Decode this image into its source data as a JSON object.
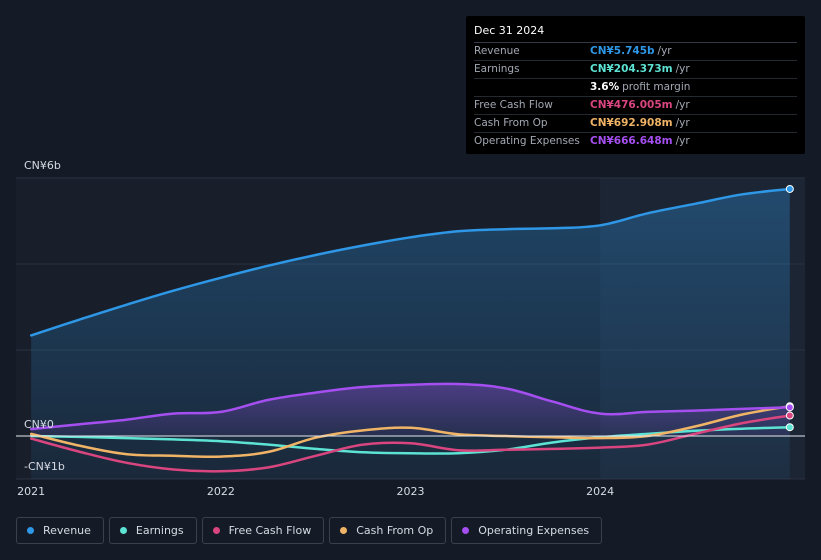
{
  "tooltip": {
    "date": "Dec 31 2024",
    "rows": [
      {
        "label": "Revenue",
        "value": "CN¥5.745b",
        "unit": "/yr",
        "color": "#2e97e6"
      },
      {
        "label": "Earnings",
        "value": "CN¥204.373m",
        "unit": "/yr",
        "color": "#5de3d3"
      },
      {
        "label": "",
        "value": "3.6%",
        "unit": "profit margin",
        "color": "#ffffff"
      },
      {
        "label": "Free Cash Flow",
        "value": "CN¥476.005m",
        "unit": "/yr",
        "color": "#d9457f"
      },
      {
        "label": "Cash From Op",
        "value": "CN¥692.908m",
        "unit": "/yr",
        "color": "#f0b467"
      },
      {
        "label": "Operating Expenses",
        "value": "CN¥666.648m",
        "unit": "/yr",
        "color": "#a54ff0"
      }
    ]
  },
  "legend": [
    {
      "label": "Revenue",
      "color": "#2e97e6"
    },
    {
      "label": "Earnings",
      "color": "#5de3d3"
    },
    {
      "label": "Free Cash Flow",
      "color": "#d9457f"
    },
    {
      "label": "Cash From Op",
      "color": "#f0b467"
    },
    {
      "label": "Operating Expenses",
      "color": "#a54ff0"
    }
  ],
  "chart_data": {
    "type": "area",
    "title": "",
    "x_unit": "year",
    "xlim": [
      2020.92,
      2025.08
    ],
    "ylim": [
      -1,
      6
    ],
    "y_tick_labels": [
      {
        "value": 6,
        "label": "CN¥6b"
      },
      {
        "value": 0,
        "label": "CN¥0"
      },
      {
        "value": -1,
        "label": "-CN¥1b"
      }
    ],
    "x_tick_labels": [
      {
        "value": 2021,
        "label": "2021"
      },
      {
        "value": 2022,
        "label": "2022"
      },
      {
        "value": 2023,
        "label": "2023"
      },
      {
        "value": 2024,
        "label": "2024"
      }
    ],
    "gridlines": [
      6,
      4,
      2,
      0,
      -1
    ],
    "highlight_from": 2024,
    "series": [
      {
        "name": "Revenue",
        "color": "#2e97e6",
        "fill": true,
        "points": [
          [
            2021,
            2.34
          ],
          [
            2021.25,
            2.7
          ],
          [
            2021.5,
            3.05
          ],
          [
            2021.75,
            3.38
          ],
          [
            2022,
            3.68
          ],
          [
            2022.25,
            3.96
          ],
          [
            2022.5,
            4.21
          ],
          [
            2022.75,
            4.43
          ],
          [
            2023,
            4.62
          ],
          [
            2023.25,
            4.76
          ],
          [
            2023.5,
            4.81
          ],
          [
            2023.75,
            4.83
          ],
          [
            2024,
            4.9
          ],
          [
            2024.25,
            5.18
          ],
          [
            2024.5,
            5.4
          ],
          [
            2024.75,
            5.62
          ],
          [
            2025,
            5.745
          ]
        ]
      },
      {
        "name": "Earnings",
        "color": "#5de3d3",
        "fill": false,
        "points": [
          [
            2021,
            0
          ],
          [
            2021.25,
            -0.02
          ],
          [
            2021.5,
            -0.05
          ],
          [
            2021.75,
            -0.08
          ],
          [
            2022,
            -0.12
          ],
          [
            2022.25,
            -0.2
          ],
          [
            2022.5,
            -0.3
          ],
          [
            2022.75,
            -0.38
          ],
          [
            2023,
            -0.4
          ],
          [
            2023.25,
            -0.4
          ],
          [
            2023.5,
            -0.32
          ],
          [
            2023.75,
            -0.15
          ],
          [
            2024,
            -0.03
          ],
          [
            2024.25,
            0.05
          ],
          [
            2024.5,
            0.12
          ],
          [
            2024.75,
            0.17
          ],
          [
            2025,
            0.204
          ]
        ]
      },
      {
        "name": "Free Cash Flow",
        "color": "#d9457f",
        "fill": false,
        "points": [
          [
            2021,
            -0.06
          ],
          [
            2021.25,
            -0.36
          ],
          [
            2021.5,
            -0.62
          ],
          [
            2021.75,
            -0.78
          ],
          [
            2022,
            -0.82
          ],
          [
            2022.25,
            -0.73
          ],
          [
            2022.5,
            -0.46
          ],
          [
            2022.75,
            -0.2
          ],
          [
            2023,
            -0.17
          ],
          [
            2023.25,
            -0.33
          ],
          [
            2023.5,
            -0.32
          ],
          [
            2023.75,
            -0.3
          ],
          [
            2024,
            -0.27
          ],
          [
            2024.25,
            -0.2
          ],
          [
            2024.5,
            0.05
          ],
          [
            2024.75,
            0.3
          ],
          [
            2025,
            0.476
          ]
        ]
      },
      {
        "name": "Cash From Op",
        "color": "#f0b467",
        "fill": false,
        "points": [
          [
            2021,
            0.05
          ],
          [
            2021.25,
            -0.22
          ],
          [
            2021.5,
            -0.42
          ],
          [
            2021.75,
            -0.46
          ],
          [
            2022,
            -0.48
          ],
          [
            2022.25,
            -0.37
          ],
          [
            2022.5,
            -0.04
          ],
          [
            2022.75,
            0.13
          ],
          [
            2023,
            0.19
          ],
          [
            2023.25,
            0.04
          ],
          [
            2023.5,
            0
          ],
          [
            2023.75,
            -0.03
          ],
          [
            2024,
            -0.05
          ],
          [
            2024.25,
            0
          ],
          [
            2024.5,
            0.22
          ],
          [
            2024.75,
            0.5
          ],
          [
            2025,
            0.693
          ]
        ]
      },
      {
        "name": "Operating Expenses",
        "color": "#a54ff0",
        "fill": true,
        "points": [
          [
            2021,
            0.16
          ],
          [
            2021.25,
            0.27
          ],
          [
            2021.5,
            0.38
          ],
          [
            2021.75,
            0.52
          ],
          [
            2022,
            0.56
          ],
          [
            2022.25,
            0.84
          ],
          [
            2022.5,
            1.01
          ],
          [
            2022.75,
            1.14
          ],
          [
            2023,
            1.19
          ],
          [
            2023.25,
            1.21
          ],
          [
            2023.5,
            1.11
          ],
          [
            2023.75,
            0.8
          ],
          [
            2024,
            0.52
          ],
          [
            2024.25,
            0.56
          ],
          [
            2024.5,
            0.59
          ],
          [
            2024.75,
            0.63
          ],
          [
            2025,
            0.667
          ]
        ]
      }
    ]
  }
}
